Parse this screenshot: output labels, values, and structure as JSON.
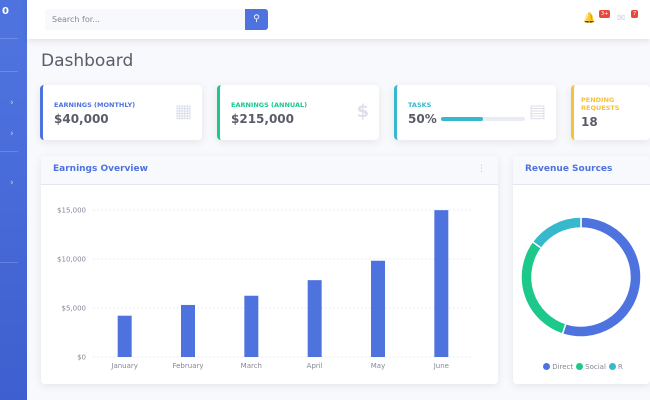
{
  "topbar": {
    "search_placeholder": "Search for...",
    "alerts_badge": "3+",
    "messages_badge": "7"
  },
  "sidebar": {
    "brand": "0"
  },
  "page_title": "Dashboard",
  "cards": [
    {
      "label": "Earnings (Monthly)",
      "value": "$40,000",
      "color": "#4e73df",
      "icon": "calendar-icon"
    },
    {
      "label": "Earnings (Annual)",
      "value": "$215,000",
      "color": "#1cc88a",
      "icon": "dollar-icon"
    },
    {
      "label": "Tasks",
      "value": "50%",
      "color": "#36b9cc",
      "icon": "clipboard-icon",
      "progress": 50
    },
    {
      "label": "Pending Requests",
      "value": "18",
      "color": "#f6c23e",
      "icon": "comments-icon"
    }
  ],
  "earnings": {
    "title": "Earnings Overview"
  },
  "revenue": {
    "title": "Revenue Sources"
  },
  "chart_data": [
    {
      "type": "bar",
      "title": "Earnings Overview",
      "categories": [
        "January",
        "February",
        "March",
        "April",
        "May",
        "June"
      ],
      "values": [
        4215,
        5312,
        6251,
        7841,
        9821,
        14984
      ],
      "yticks": [
        "$0",
        "$5,000",
        "$10,000",
        "$15,000"
      ],
      "ylim": [
        0,
        15000
      ],
      "grid": true,
      "color": "#4e73df"
    },
    {
      "type": "pie",
      "title": "Revenue Sources",
      "labels": [
        "Direct",
        "Social",
        "Referral"
      ],
      "legend_visible": [
        "Direct",
        "Social",
        "R"
      ],
      "values": [
        55,
        30,
        15
      ],
      "colors": [
        "#4e73df",
        "#1cc88a",
        "#36b9cc"
      ],
      "legend": "bottom"
    }
  ]
}
